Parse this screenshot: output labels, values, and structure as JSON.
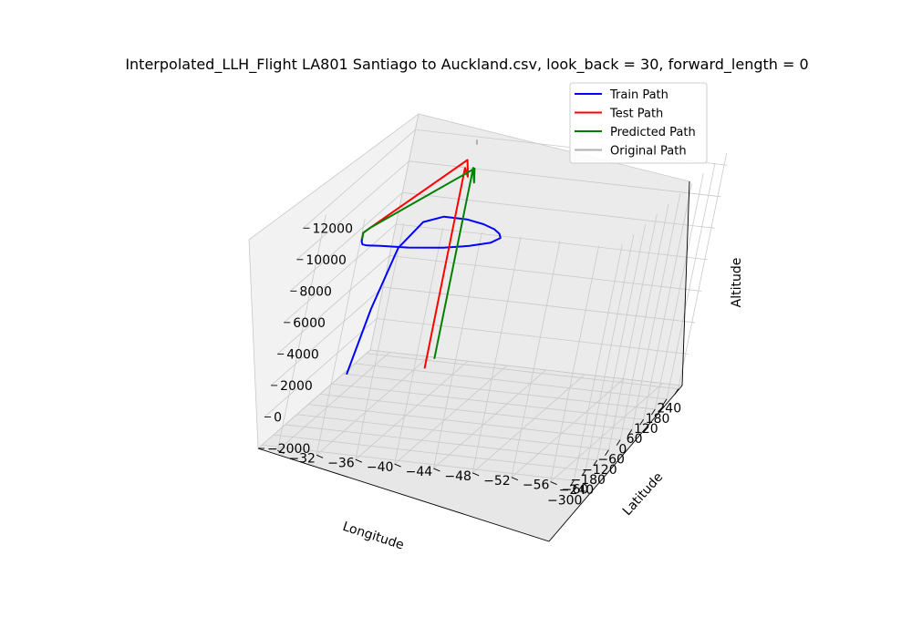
{
  "chart_data": {
    "type": "line3d",
    "title": "Interpolated_LLH_Flight LA801 Santiago to Auckland.csv, look_back = 30, forward_length = 0",
    "xlabel": "Longitude",
    "ylabel": "Latitude",
    "zlabel": "Altitude",
    "x_ticks": [
      "−300",
      "−240",
      "−180",
      "−120",
      "−60",
      "0",
      "60",
      "120",
      "180",
      "240"
    ],
    "y_ticks": [
      "−60",
      "−56",
      "−52",
      "−48",
      "−44",
      "−40",
      "−36",
      "−32"
    ],
    "z_ticks": [
      "−2000",
      "0",
      "2000",
      "4000",
      "6000",
      "8000",
      "10000",
      "12000"
    ],
    "xlim": [
      -320,
      260
    ],
    "ylim": [
      -62,
      -30
    ],
    "zlim": [
      -2000,
      13000
    ],
    "grid": true,
    "legend_position": "top-right",
    "legend": [
      {
        "name": "Train Path",
        "color": "#0000ff"
      },
      {
        "name": "Test Path",
        "color": "#ff0000"
      },
      {
        "name": "Predicted Path",
        "color": "#008000"
      },
      {
        "name": "Original Path",
        "color": "#b0b0b0"
      }
    ],
    "series": [
      {
        "name": "Train Path",
        "color": "#0000ff",
        "points": [
          [
            -70.8,
            -33.4,
            300
          ],
          [
            -71.5,
            -34.5,
            4500
          ],
          [
            -72.5,
            -36.0,
            8500
          ],
          [
            -74,
            -38,
            10300
          ],
          [
            -76,
            -40,
            10800
          ],
          [
            -85,
            -42.5,
            10900
          ],
          [
            -100,
            -44.5,
            10900
          ],
          [
            -120,
            -46.0,
            10900
          ],
          [
            -145,
            -47.0,
            10950
          ],
          [
            -170,
            -47.6,
            11000
          ],
          [
            -200,
            -47.2,
            11000
          ],
          [
            -230,
            -45.6,
            11000
          ],
          [
            -255,
            -43.4,
            11000
          ],
          [
            -275,
            -40.2,
            11000
          ],
          [
            -287,
            -37.6,
            11050
          ],
          [
            -293,
            -36.3,
            11050
          ],
          [
            -290,
            -35.8,
            11050
          ],
          [
            -280,
            -35.5,
            11100
          ],
          [
            -268,
            -35.3,
            11150
          ]
        ]
      },
      {
        "name": "Test Path",
        "color": "#ff0000",
        "points": [
          [
            -268,
            -35.3,
            11150
          ],
          [
            -255,
            -35.1,
            11200
          ],
          [
            -250,
            -35.0,
            11300
          ],
          [
            -260,
            -35.8,
            11800
          ],
          [
            175,
            -37.2,
            11500
          ],
          [
            180,
            -37.5,
            10400
          ],
          [
            182,
            -37.0,
            10900
          ],
          [
            183,
            -37.05,
            -1800
          ]
        ]
      },
      {
        "name": "Predicted Path",
        "color": "#008000",
        "points": [
          [
            -268,
            -35.3,
            11150
          ],
          [
            -255,
            -35.1,
            11200
          ],
          [
            -250,
            -35.0,
            11300
          ],
          [
            -260,
            -35.8,
            11800
          ],
          [
            168,
            -38.2,
            11100
          ],
          [
            170,
            -38.4,
            10200
          ],
          [
            171,
            -38.0,
            11100
          ],
          [
            172,
            -38.0,
            -1000
          ]
        ]
      },
      {
        "name": "Original Path",
        "color": "#b0b0b0",
        "points": [
          [
            226,
            -37.0,
            11950
          ],
          [
            228,
            -36.9,
            12150
          ]
        ]
      }
    ]
  }
}
